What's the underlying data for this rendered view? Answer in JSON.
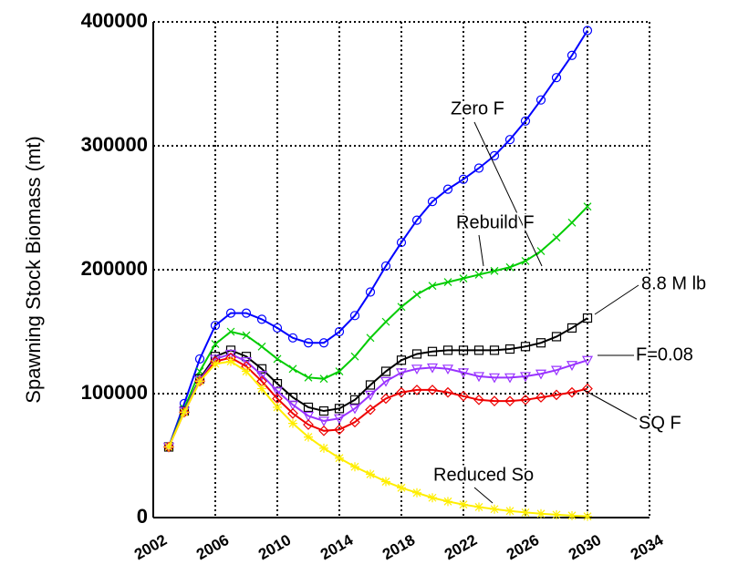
{
  "chart_data": {
    "type": "line",
    "y_label": "Spawning Stock Biomass (mt)",
    "x": [
      2003,
      2004,
      2005,
      2006,
      2007,
      2008,
      2009,
      2010,
      2011,
      2012,
      2013,
      2014,
      2015,
      2016,
      2017,
      2018,
      2019,
      2020,
      2021,
      2022,
      2023,
      2024,
      2025,
      2026,
      2027,
      2028,
      2029,
      2030
    ],
    "xlim": [
      2002,
      2034
    ],
    "xticks": [
      2002,
      2006,
      2010,
      2014,
      2018,
      2022,
      2026,
      2030,
      2034
    ],
    "ylim": [
      0,
      400000
    ],
    "yticks": [
      0,
      100000,
      200000,
      300000,
      400000
    ],
    "grid": true,
    "series": [
      {
        "name": "Zero F",
        "color": "#0000ff",
        "marker": "circle",
        "values": [
          57000,
          92000,
          128000,
          155000,
          165000,
          165000,
          160000,
          153000,
          145000,
          141000,
          141000,
          150000,
          163000,
          182000,
          203000,
          222000,
          240000,
          255000,
          265000,
          273000,
          282000,
          292000,
          305000,
          320000,
          337000,
          355000,
          373000,
          393000
        ]
      },
      {
        "name": "Rebuild F",
        "color": "#00cc00",
        "marker": "x",
        "values": [
          57000,
          88000,
          118000,
          140000,
          150000,
          147000,
          138000,
          128000,
          120000,
          113000,
          112000,
          118000,
          130000,
          145000,
          158000,
          170000,
          180000,
          187000,
          190000,
          193000,
          196000,
          199000,
          202000,
          207000,
          215000,
          226000,
          238000,
          251000
        ]
      },
      {
        "name": "8.8 M lb",
        "color": "#000000",
        "marker": "square",
        "values": [
          57000,
          86000,
          112000,
          130000,
          135000,
          130000,
          120000,
          108000,
          97000,
          89000,
          86000,
          88000,
          95000,
          107000,
          118000,
          127000,
          132000,
          134000,
          135000,
          135000,
          135000,
          135000,
          136000,
          138000,
          141000,
          146000,
          153000,
          161000
        ]
      },
      {
        "name": "F=0.08",
        "color": "#9933ff",
        "marker": "triangle-down",
        "values": [
          57000,
          86000,
          111000,
          128000,
          132000,
          126000,
          115000,
          102000,
          91000,
          82000,
          78000,
          80000,
          88000,
          99000,
          110000,
          117000,
          120000,
          121000,
          120000,
          117000,
          114000,
          113000,
          113000,
          114000,
          116000,
          119000,
          123000,
          127000
        ]
      },
      {
        "name": "SQ F",
        "color": "#ee0000",
        "marker": "diamond",
        "values": [
          57000,
          85000,
          110000,
          126000,
          129000,
          122000,
          110000,
          96000,
          84000,
          75000,
          70000,
          71000,
          77000,
          87000,
          96000,
          101000,
          103000,
          103000,
          101000,
          98000,
          95000,
          94000,
          94000,
          95000,
          97000,
          99000,
          101000,
          104000
        ]
      },
      {
        "name": "Reduced So",
        "color": "#ffee00",
        "marker": "star",
        "values": [
          57000,
          85000,
          110000,
          124000,
          126000,
          118000,
          104000,
          89000,
          76000,
          65000,
          56000,
          48000,
          41000,
          35000,
          29000,
          24000,
          20000,
          16000,
          13000,
          10500,
          8500,
          6800,
          5300,
          4100,
          3100,
          2300,
          1600,
          1000
        ]
      }
    ]
  }
}
